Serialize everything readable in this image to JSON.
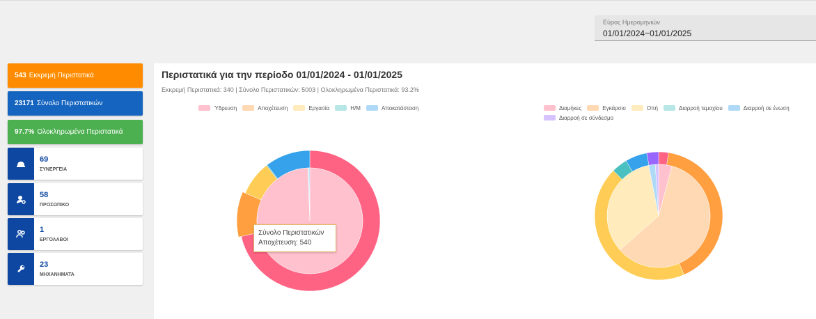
{
  "date_range": {
    "label": "Εύρος Ημερομηνιών",
    "value": "01/01/2024~01/01/2025"
  },
  "kpis": [
    {
      "value": "543",
      "label": "Εκκρεμή Περιστατικά",
      "color": "#ff8c00"
    },
    {
      "value": "23171",
      "label": "Σύνολο Περιστατικών",
      "color": "#1565c0"
    },
    {
      "value": "97.7%",
      "label": "Ολοκληρωμένα Περιστατικά",
      "color": "#4caf50"
    }
  ],
  "stats": [
    {
      "value": "69",
      "label": "ΣΥΝΕΡΓΕΙΑ",
      "icon": "helmet-icon"
    },
    {
      "value": "58",
      "label": "ΠΡΟΣΩΠΙΚΟ",
      "icon": "person-gear-icon"
    },
    {
      "value": "1",
      "label": "ΕΡΓΟΛΑΒΟΙ",
      "icon": "people-icon"
    },
    {
      "value": "23",
      "label": "ΜΗΧΑΝΗΜΑΤΑ",
      "icon": "wrench-icon"
    }
  ],
  "panel": {
    "title": "Περιστατικά για την περίοδο 01/01/2024 - 01/01/2025",
    "subtitle": "Εκκρεμή Περιστατικά: 340 | Σύνολο Περιστατικών: 5003 | Ολοκληρωμένα Περιστατικά: 93.2%",
    "tooltip": {
      "title": "Σύνολο Περιστατικών",
      "line": "Αποχέτευση: 540"
    }
  },
  "chart_data": [
    {
      "type": "pie",
      "legend": [
        {
          "name": "Ύδρευση",
          "color": "#ff6384"
        },
        {
          "name": "Αποχέτευση",
          "color": "#ff9f40"
        },
        {
          "name": "Εργασία",
          "color": "#ffcd56"
        },
        {
          "name": "Η/Μ",
          "color": "#4bc0c0"
        },
        {
          "name": "Αποκατάσταση",
          "color": "#36a2eb"
        }
      ],
      "series": [
        {
          "ring": "outer",
          "values": [
            3850,
            540,
            430,
            10,
            560
          ]
        },
        {
          "ring": "inner",
          "values": [
            980,
            0,
            0,
            3,
            3
          ]
        }
      ]
    },
    {
      "type": "pie",
      "legend": [
        {
          "name": "Διαμήκες",
          "color": "#ff6384"
        },
        {
          "name": "Εγκάρσιο",
          "color": "#ff9f40"
        },
        {
          "name": "Οπή",
          "color": "#ffcd56"
        },
        {
          "name": "Διαρροή τεμαχίου",
          "color": "#4bc0c0"
        },
        {
          "name": "Διαρροή σε ένωση",
          "color": "#36a2eb"
        },
        {
          "name": "Διαρροή σε σύνδεσμο",
          "color": "#9966ff"
        }
      ],
      "series": [
        {
          "ring": "outer",
          "values": [
            2.5,
            41,
            44,
            4,
            5.5,
            3
          ]
        },
        {
          "ring": "inner",
          "values": [
            4,
            57,
            32,
            0,
            2,
            1
          ]
        }
      ]
    }
  ]
}
